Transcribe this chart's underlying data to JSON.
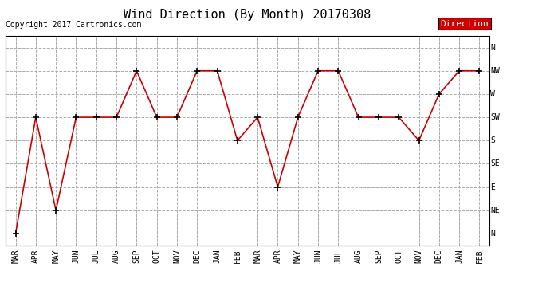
{
  "title": "Wind Direction (By Month) 20170308",
  "copyright": "Copyright 2017 Cartronics.com",
  "legend_label": "Direction",
  "legend_color_bg": "#cc0000",
  "legend_text_color": "#ffffff",
  "x_labels": [
    "MAR",
    "APR",
    "MAY",
    "JUN",
    "JUL",
    "AUG",
    "SEP",
    "OCT",
    "NOV",
    "DEC",
    "JAN",
    "FEB",
    "MAR",
    "APR",
    "MAY",
    "JUN",
    "JUL",
    "AUG",
    "SEP",
    "OCT",
    "NOV",
    "DEC",
    "JAN",
    "FEB"
  ],
  "y_labels": [
    "N",
    "NE",
    "E",
    "SE",
    "S",
    "SW",
    "W",
    "NW",
    "N"
  ],
  "data_values": [
    0,
    5,
    1,
    5,
    5,
    5,
    7,
    5,
    5,
    7,
    7,
    4,
    5,
    2,
    5,
    7,
    7,
    5,
    5,
    5,
    4,
    6,
    7,
    7
  ],
  "line_color": "#cc0000",
  "marker": "+",
  "marker_color": "#000000",
  "marker_size": 6,
  "line_width": 1.2,
  "grid_color": "#aaaaaa",
  "grid_style": "--",
  "bg_color": "#ffffff",
  "title_fontsize": 11,
  "tick_fontsize": 7,
  "copyright_fontsize": 7
}
